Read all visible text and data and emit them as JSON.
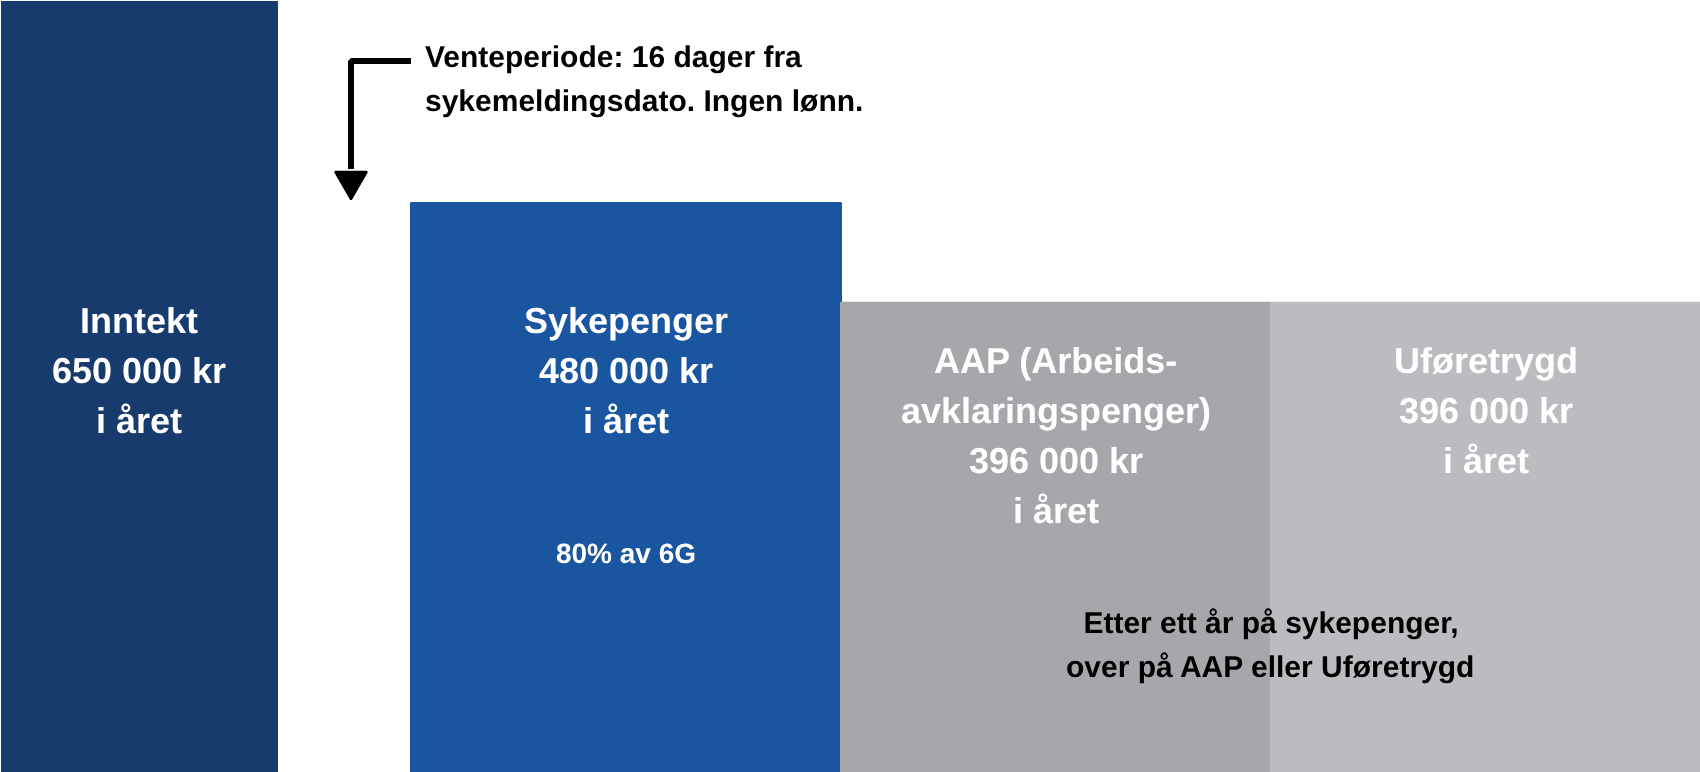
{
  "chart_data": {
    "type": "bar",
    "categories": [
      "Inntekt",
      "Sykepenger",
      "AAP (Arbeids-\navklaringspenger)",
      "Uføretrygd"
    ],
    "values": [
      650000,
      480000,
      396000,
      396000
    ],
    "colors": [
      "#173b6c",
      "#1a55a0",
      "#a6a7aa",
      "#bbbcbf"
    ],
    "value_labels": [
      "650 000 kr\ni året",
      "480 000 kr\ni året",
      "396 000 kr\ni året",
      "396 000 kr\ni året"
    ],
    "ylim": [
      0,
      650000
    ],
    "annotations": [
      "Venteperiode: 16 dager fra\nsykemeldingsdato. Ingen lønn.",
      "80% av 6G",
      "Etter ett år på sykepenger,\nover på AAP eller Uføretrygd"
    ]
  }
}
